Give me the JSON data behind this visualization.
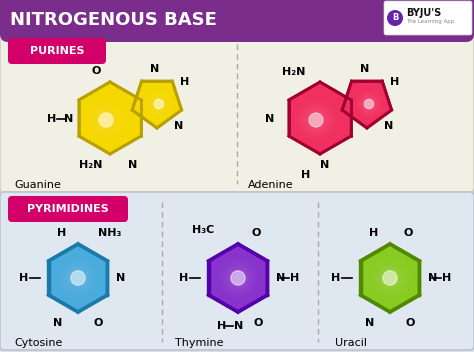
{
  "title": "NITROGENOUS BASE",
  "title_bg": "#7B2D8B",
  "title_color": "white",
  "bg_color": "#dde0ea",
  "purines_label": "PURINES",
  "pyrimidines_label": "PYRIMIDINES",
  "label_bg": "#d4006a",
  "label_color": "white",
  "panel_bg": "#f0f0e4",
  "panel_bg2": "#dfe8f0",
  "guanine_color": "#f5d800",
  "guanine_edge": "#b8a000",
  "adenine_color": "#f03060",
  "adenine_edge": "#a00030",
  "cytosine_color": "#4aabdd",
  "cytosine_edge": "#1a7aaa",
  "thymine_color": "#8833cc",
  "thymine_edge": "#5500aa",
  "uracil_color": "#88cc22",
  "uracil_edge": "#508800",
  "names": [
    "Guanine",
    "Adenine",
    "Cytosine",
    "Thymine",
    "Uracil"
  ]
}
